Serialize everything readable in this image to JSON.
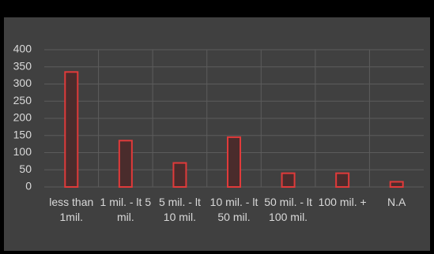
{
  "chart_data": {
    "type": "bar",
    "categories": [
      "less than 1mil.",
      "1 mil. - lt 5 mil.",
      "5 mil. - lt 10 mil.",
      "10 mil. - lt 50 mil.",
      "50 mil. - lt 100 mil.",
      "100 mil. +",
      "N.A"
    ],
    "values": [
      335,
      135,
      70,
      145,
      40,
      40,
      15
    ],
    "color": "#e03a3a",
    "ylim": [
      0,
      400
    ],
    "yticks": [
      0,
      50,
      100,
      150,
      200,
      250,
      300,
      350,
      400
    ],
    "grid": true
  }
}
